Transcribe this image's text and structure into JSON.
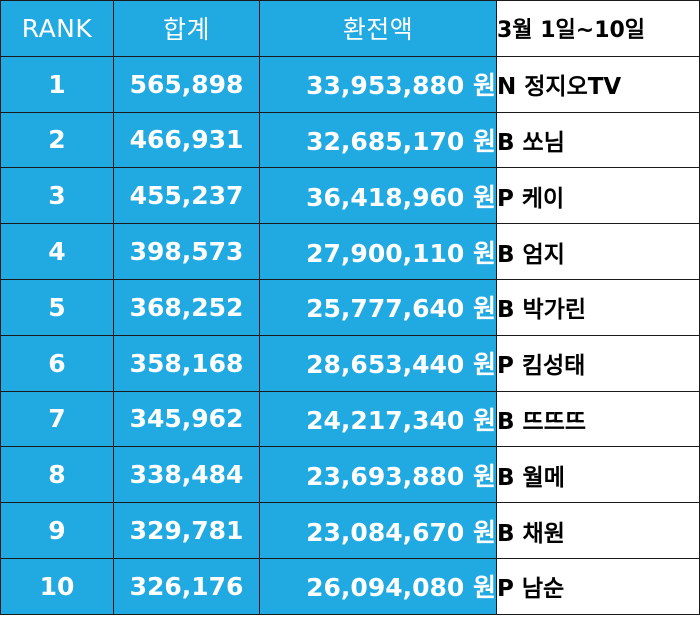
{
  "table": {
    "headers": {
      "rank": "RANK",
      "total": "합계",
      "amount": "환전액",
      "period": "3월 1일~10일"
    },
    "rows": [
      {
        "rank": "1",
        "total": "565,898",
        "amount": "33,953,880 원",
        "name": "N 정지오TV"
      },
      {
        "rank": "2",
        "total": "466,931",
        "amount": "32,685,170 원",
        "name": "B 쏘님"
      },
      {
        "rank": "3",
        "total": "455,237",
        "amount": "36,418,960 원",
        "name": "P 케이"
      },
      {
        "rank": "4",
        "total": "398,573",
        "amount": "27,900,110 원",
        "name": "B 엄지"
      },
      {
        "rank": "5",
        "total": "368,252",
        "amount": "25,777,640 원",
        "name": "B 박가린"
      },
      {
        "rank": "6",
        "total": "358,168",
        "amount": "28,653,440 원",
        "name": "P 킴성태"
      },
      {
        "rank": "7",
        "total": "345,962",
        "amount": "24,217,340 원",
        "name": "B 뜨뜨뜨"
      },
      {
        "rank": "8",
        "total": "338,484",
        "amount": "23,693,880 원",
        "name": "B 월메"
      },
      {
        "rank": "9",
        "total": "329,781",
        "amount": "23,084,670 원",
        "name": "B 채원"
      },
      {
        "rank": "10",
        "total": "326,176",
        "amount": "26,094,080 원",
        "name": "P 남순"
      }
    ]
  },
  "colors": {
    "header_blue": "#21a9e1",
    "cell_text": "#ffffff",
    "name_background": "#ffffff",
    "border": "#1a1a1a"
  }
}
